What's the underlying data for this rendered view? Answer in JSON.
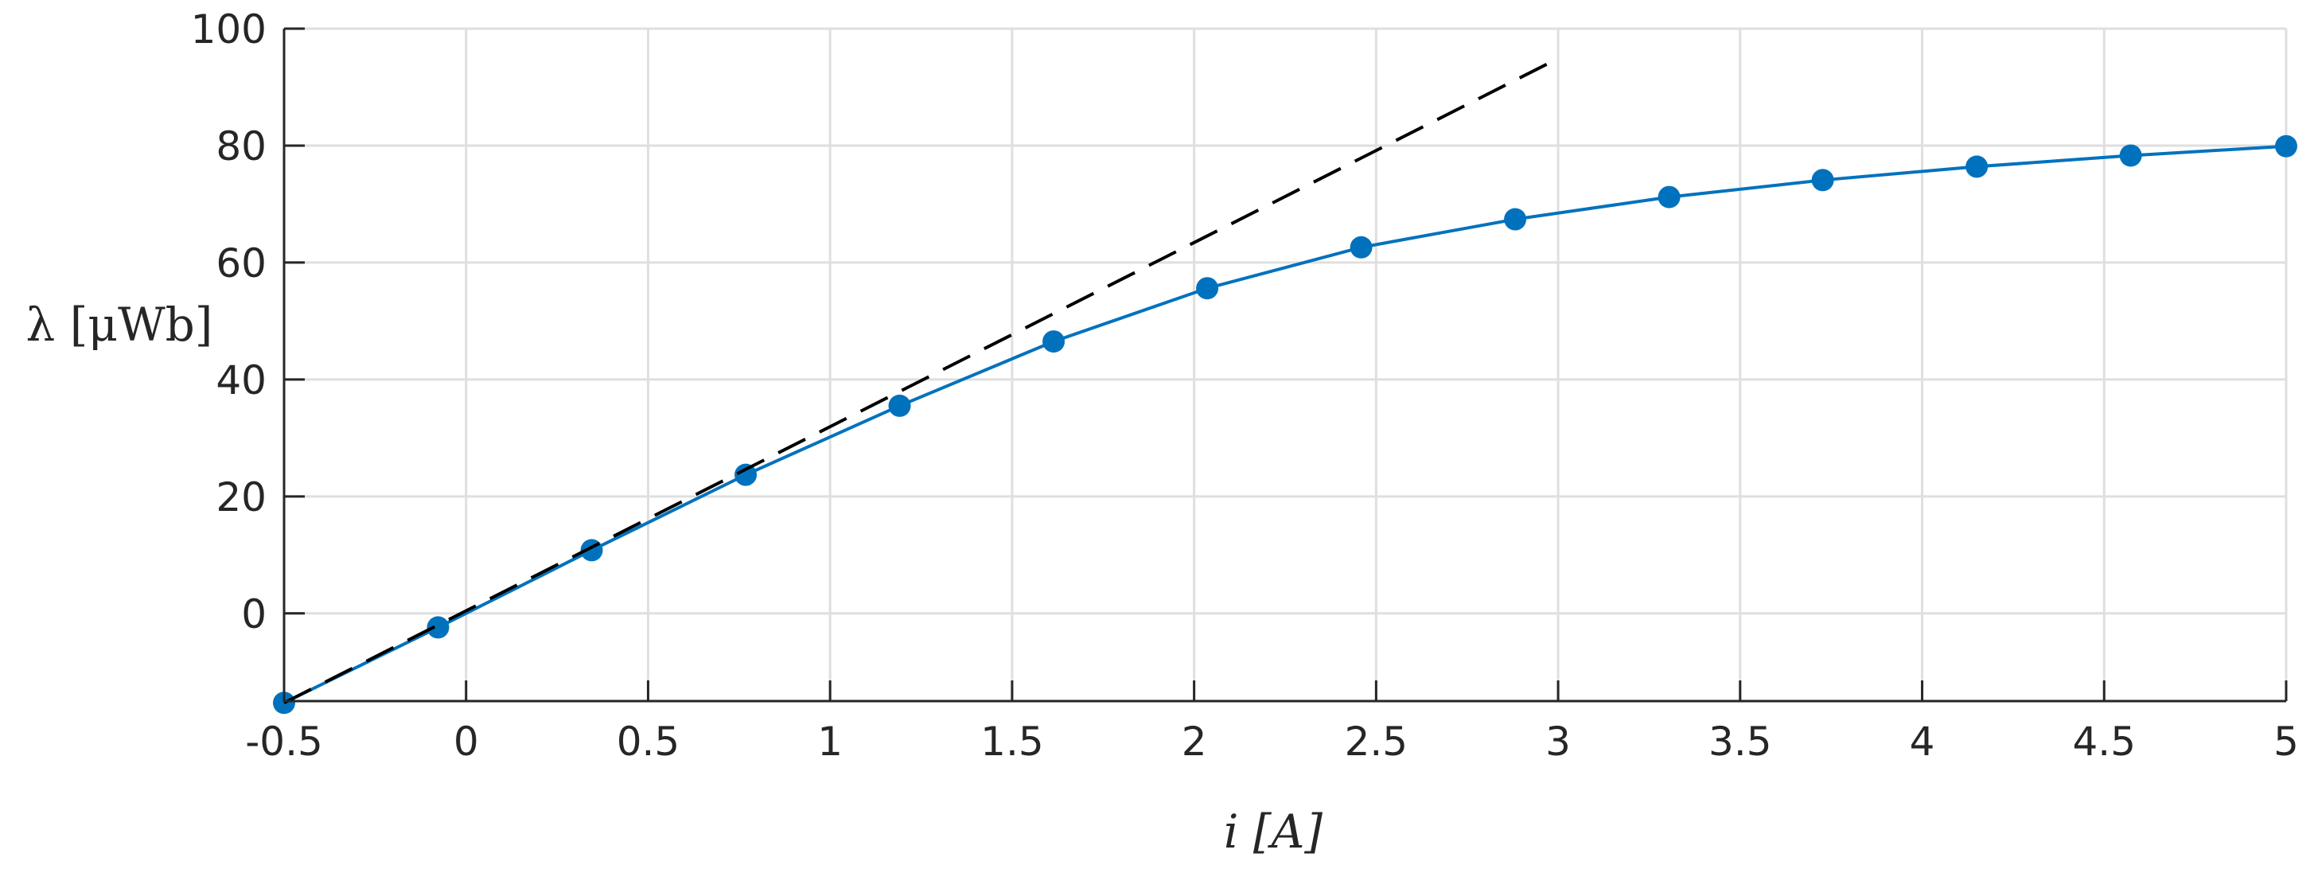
{
  "chart_data": {
    "type": "line",
    "title": "",
    "xlabel": "i [A]",
    "ylabel": "λ [μWb]",
    "xlim": [
      -0.5,
      5
    ],
    "ylim": [
      -15,
      100
    ],
    "x_ticks": [
      -0.5,
      0,
      0.5,
      1,
      1.5,
      2,
      2.5,
      3,
      3.5,
      4,
      4.5,
      5
    ],
    "x_tick_labels": [
      "-0.5",
      "0",
      "0.5",
      "1",
      "1.5",
      "2",
      "2.5",
      "3",
      "3.5",
      "4",
      "4.5",
      "5"
    ],
    "y_ticks": [
      0,
      20,
      40,
      60,
      80,
      100
    ],
    "y_tick_labels": [
      "0",
      "20",
      "40",
      "60",
      "80",
      "100"
    ],
    "grid": true,
    "series": [
      {
        "style": "solid-with-markers",
        "color": "#0072BD",
        "points": [
          {
            "x": -0.5,
            "y": -15.3
          },
          {
            "x": -0.077,
            "y": -2.4
          },
          {
            "x": 0.345,
            "y": 10.8
          },
          {
            "x": 0.768,
            "y": 23.7
          },
          {
            "x": 1.191,
            "y": 35.5
          },
          {
            "x": 1.614,
            "y": 46.5
          },
          {
            "x": 2.036,
            "y": 55.6
          },
          {
            "x": 2.459,
            "y": 62.6
          },
          {
            "x": 2.882,
            "y": 67.4
          },
          {
            "x": 3.305,
            "y": 71.2
          },
          {
            "x": 3.727,
            "y": 74.1
          },
          {
            "x": 4.15,
            "y": 76.4
          },
          {
            "x": 4.573,
            "y": 78.3
          },
          {
            "x": 5.0,
            "y": 79.9
          }
        ]
      },
      {
        "style": "dashed",
        "color": "#000000",
        "points": [
          {
            "x": -0.5,
            "y": -15.3
          },
          {
            "x": 3.0,
            "y": 94.9
          }
        ]
      }
    ]
  }
}
